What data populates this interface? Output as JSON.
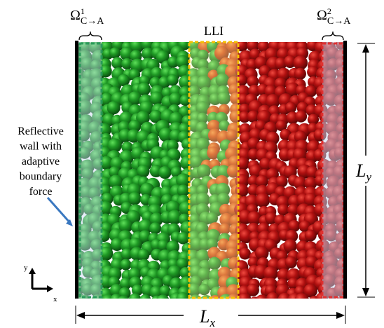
{
  "labels": {
    "omega_left": {
      "base": "Ω",
      "sup": "1",
      "sub": "C→A"
    },
    "omega_right": {
      "base": "Ω",
      "sup": "2",
      "sub": "C→A"
    },
    "interface": "LLI",
    "wall_note": [
      "Reflective",
      "wall with",
      "adaptive",
      "boundary",
      "force"
    ],
    "length_y": {
      "base": "L",
      "sub": "y"
    },
    "length_x": {
      "base": "L",
      "sub": "x"
    },
    "axes": {
      "y": "y",
      "x": "x"
    }
  }
}
